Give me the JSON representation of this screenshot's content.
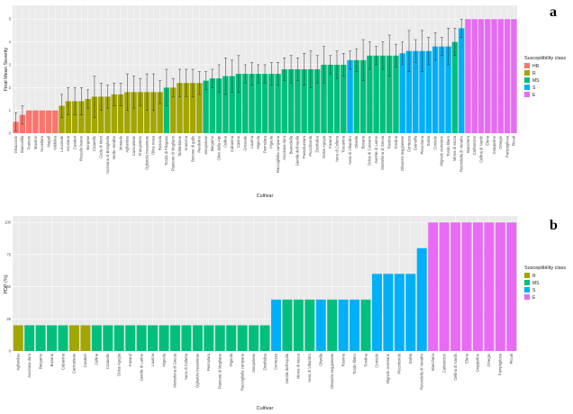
{
  "panel_a_letter": "a",
  "panel_b_letter": "b",
  "colors": {
    "HR": "#F8766D",
    "R": "#A3A500",
    "MS": "#00BF7D",
    "S": "#00B0F6",
    "E": "#E76BF3"
  },
  "chart_data": [
    {
      "type": "bar",
      "panel": "a",
      "xlabel": "Cultivar",
      "ylabel": "Final Mean Severity",
      "ylim": [
        0,
        5.6
      ],
      "yticks": [
        0,
        1,
        2,
        3,
        4,
        5
      ],
      "grid": true,
      "legend_title": "Susceptibility class",
      "legend": [
        "HR",
        "R",
        "MS",
        "S",
        "E"
      ],
      "legend_position": "right",
      "categories": [
        "Ghiacciolo",
        "Biancolilla",
        "Frantoio",
        "Maurino",
        "Nocellara",
        "Magalì",
        "Valdolea",
        "Leccinole",
        "Ascolana",
        "Cavaleri",
        "Rossolo buono",
        "Borgese",
        "Ciciarello",
        "Coda di Morti",
        "Nostrana di Brisighella",
        "Verde Veralbo",
        "Moraiolo",
        "Agliandau",
        "Canicattese",
        "Frangivento",
        "Ogliarola messinese",
        "Oliva rossa",
        "Rosciola",
        "Tonda di Filogaso",
        "Piantone di Mogliano",
        "Taddeddone",
        "Arancina",
        "Bottone di gallo",
        "Pendolino",
        "Sinopolese",
        "Bergamo",
        "Olivo della Alpi",
        "Cellina",
        "Cabanina",
        "Canino",
        "Grossale",
        "Laurina",
        "Mignola",
        "Pennulara",
        "Pignola",
        "Raccogliella campana",
        "Ascolana dura",
        "Biancolella",
        "Gentile dell'Aquila",
        "Passoluzzara",
        "Piccolitonda",
        "Zinzifalica",
        "Dolce Agogia",
        "Favarol",
        "Nera di Colletta",
        "Toscanina",
        "Nera di Villacidro",
        "Olivella",
        "Bosana",
        "Dolce di Cassano",
        "Gentile di Larino",
        "Montefona di Grecia",
        "Rustina",
        "Tondina",
        "Olivastra seggianese",
        "Cornezza",
        "Giarraffa",
        "Pisciottana",
        "Salvia",
        "Corniolo",
        "Mignolo cerretano",
        "Tondo libero",
        "Minna di vacca",
        "Rotondella di Venafro",
        "Bianchera",
        "Carbuncion",
        "Cellina di Nardò",
        "Elena",
        "Grappolino",
        "Omegio",
        "Pampagliosa",
        "Picual"
      ],
      "values": [
        0.5,
        0.8,
        1.0,
        1.0,
        1.0,
        1.0,
        1.0,
        1.2,
        1.4,
        1.4,
        1.4,
        1.5,
        1.6,
        1.6,
        1.6,
        1.7,
        1.7,
        1.8,
        1.8,
        1.8,
        1.8,
        1.8,
        1.8,
        2.0,
        2.0,
        2.2,
        2.2,
        2.2,
        2.2,
        2.3,
        2.4,
        2.4,
        2.5,
        2.5,
        2.6,
        2.6,
        2.6,
        2.6,
        2.6,
        2.6,
        2.6,
        2.8,
        2.8,
        2.8,
        2.8,
        2.8,
        2.8,
        3.0,
        3.0,
        3.0,
        3.0,
        3.2,
        3.2,
        3.2,
        3.4,
        3.4,
        3.4,
        3.4,
        3.4,
        3.5,
        3.6,
        3.6,
        3.6,
        3.6,
        3.8,
        3.8,
        3.8,
        4.0,
        4.6,
        5.0,
        5.0,
        5.0,
        5.0,
        5.0,
        5.0,
        5.0,
        5.0
      ],
      "errors": [
        0.4,
        0.4,
        0,
        0,
        0,
        0,
        0,
        0.5,
        0.6,
        0.6,
        0.6,
        0.4,
        0.9,
        0.6,
        0.5,
        0.5,
        0.5,
        0.8,
        0.7,
        0.6,
        0.8,
        0.8,
        0.5,
        0.8,
        0.4,
        0.6,
        0.6,
        0.6,
        0.5,
        0.4,
        0.4,
        0.6,
        0.8,
        0.7,
        0.8,
        0.4,
        0.5,
        0.4,
        0.4,
        0.5,
        0.5,
        0.5,
        0.6,
        0.5,
        0.7,
        0.8,
        0.6,
        0.8,
        0.4,
        0.6,
        0.5,
        0.4,
        0.5,
        0.9,
        0.6,
        0.4,
        0.6,
        0.9,
        0.5,
        0.5,
        0.9,
        0.5,
        0.9,
        0.6,
        0.6,
        0.4,
        0.8,
        0.6,
        0.4,
        0,
        0,
        0,
        0,
        0,
        0,
        0,
        0
      ],
      "classes": [
        "HR",
        "HR",
        "HR",
        "HR",
        "HR",
        "HR",
        "HR",
        "R",
        "R",
        "R",
        "R",
        "R",
        "R",
        "R",
        "R",
        "R",
        "R",
        "R",
        "R",
        "R",
        "R",
        "R",
        "R",
        "MS",
        "R",
        "R",
        "R",
        "R",
        "R",
        "MS",
        "MS",
        "MS",
        "MS",
        "MS",
        "MS",
        "MS",
        "MS",
        "MS",
        "MS",
        "MS",
        "MS",
        "MS",
        "MS",
        "MS",
        "MS",
        "MS",
        "MS",
        "MS",
        "MS",
        "MS",
        "MS",
        "S",
        "MS",
        "MS",
        "MS",
        "MS",
        "MS",
        "MS",
        "MS",
        "S",
        "S",
        "S",
        "S",
        "S",
        "S",
        "S",
        "S",
        "MS",
        "S",
        "E",
        "E",
        "E",
        "E",
        "E",
        "E",
        "E",
        "E"
      ]
    },
    {
      "type": "bar",
      "panel": "b",
      "xlabel": "Cultivar",
      "ylabel": "PDP (%)",
      "ylim": [
        0,
        105
      ],
      "yticks": [
        0,
        25,
        50,
        75,
        100
      ],
      "grid": true,
      "legend_title": "Susceptibility class",
      "legend": [
        "R",
        "MS",
        "S",
        "E"
      ],
      "legend_position": "right",
      "categories": [
        "Agliandau",
        "Ascolana dura",
        "Bergamo",
        "Bosana",
        "Cabanina",
        "Canicattese",
        "Cavaleri",
        "Cellina",
        "Ciciarello",
        "Dolce Agogia",
        "Favarol",
        "Gentile di Larino",
        "Laurina",
        "Mignola",
        "Montefona di Grecia",
        "Nera di Colletta",
        "Ogliarola messinese",
        "Pennulara",
        "Piantone di Mogliano",
        "Pignola",
        "Raccogliella campana",
        "Sinopolese",
        "Zinzifalica",
        "Cornezza",
        "Gentile dell'Aquila",
        "Minna di vacca",
        "Nera di Villacidro",
        "Olivella",
        "Olivastra seggianese",
        "Rustina",
        "Tondo libero",
        "Tondina",
        "Corniolo",
        "Mignolo cerretano",
        "Piccolitonda",
        "Salvia",
        "Rotondella di Venafro",
        "Bianchera",
        "Carbuncion",
        "Cellina di Nardò",
        "Elena",
        "Grappolino",
        "Omegio",
        "Pampagliosa",
        "Picual"
      ],
      "values": [
        20,
        20,
        20,
        20,
        20,
        20,
        20,
        20,
        20,
        20,
        20,
        20,
        20,
        20,
        20,
        20,
        20,
        20,
        20,
        20,
        20,
        20,
        20,
        40,
        40,
        40,
        40,
        40,
        40,
        40,
        40,
        40,
        60,
        60,
        60,
        60,
        80,
        100,
        100,
        100,
        100,
        100,
        100,
        100,
        100
      ],
      "classes": [
        "R",
        "MS",
        "MS",
        "MS",
        "MS",
        "R",
        "R",
        "MS",
        "MS",
        "MS",
        "MS",
        "MS",
        "MS",
        "MS",
        "MS",
        "MS",
        "MS",
        "MS",
        "MS",
        "MS",
        "MS",
        "MS",
        "MS",
        "S",
        "MS",
        "MS",
        "MS",
        "S",
        "MS",
        "S",
        "S",
        "MS",
        "S",
        "S",
        "S",
        "S",
        "S",
        "E",
        "E",
        "E",
        "E",
        "E",
        "E",
        "E",
        "E"
      ]
    }
  ]
}
